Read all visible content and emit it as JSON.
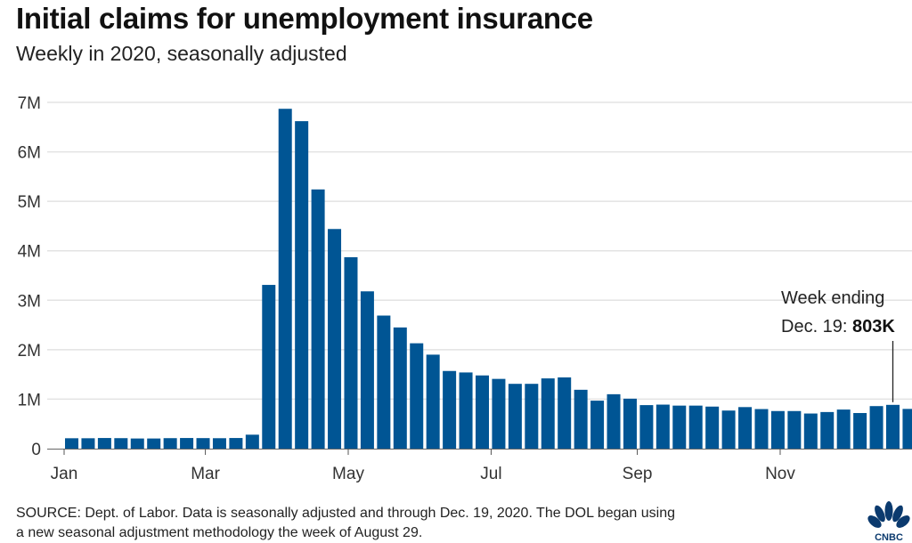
{
  "header": {
    "title": "Initial claims for unemployment insurance",
    "subtitle": "Weekly in 2020, seasonally adjusted"
  },
  "footer": {
    "source_line1": "SOURCE: Dept. of Labor. Data is seasonally adjusted and through Dec. 19, 2020. The DOL began using",
    "source_line2": "a new seasonal adjustment methodology the week of August 29.",
    "logo_text": "CNBC"
  },
  "chart_data": {
    "type": "bar",
    "title": "Initial claims for unemployment insurance",
    "subtitle": "Weekly in 2020, seasonally adjusted",
    "xlabel": "",
    "ylabel": "",
    "ylim": [
      0,
      7000000
    ],
    "yticks": [
      0,
      1000000,
      2000000,
      3000000,
      4000000,
      5000000,
      6000000,
      7000000
    ],
    "ytick_labels": [
      "0",
      "1M",
      "2M",
      "3M",
      "4M",
      "5M",
      "6M",
      "7M"
    ],
    "grid": true,
    "xtick_labels": [
      {
        "label": "Jan",
        "week_index": 0
      },
      {
        "label": "Mar",
        "week_index": 8.6
      },
      {
        "label": "May",
        "week_index": 17.3
      },
      {
        "label": "Jul",
        "week_index": 26
      },
      {
        "label": "Sep",
        "week_index": 34.9
      },
      {
        "label": "Nov",
        "week_index": 43.6
      }
    ],
    "bar_color": "#005594",
    "values": [
      210000,
      210000,
      215000,
      212000,
      205000,
      205000,
      212000,
      215000,
      213000,
      211000,
      215000,
      282000,
      3310000,
      6870000,
      6620000,
      5240000,
      4440000,
      3870000,
      3180000,
      2690000,
      2450000,
      2130000,
      1900000,
      1570000,
      1540000,
      1480000,
      1410000,
      1310000,
      1310000,
      1420000,
      1440000,
      1190000,
      970000,
      1100000,
      1010000,
      880000,
      890000,
      870000,
      870000,
      850000,
      770000,
      840000,
      800000,
      760000,
      760000,
      710000,
      740000,
      790000,
      720000,
      860000,
      885000,
      803000
    ],
    "annotation": {
      "line1": "Week ending",
      "line2_prefix": "Dec. 19: ",
      "line2_value": "803K",
      "week_index": 50
    }
  }
}
